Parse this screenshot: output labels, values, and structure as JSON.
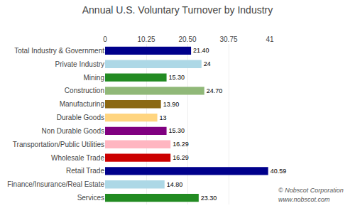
{
  "chart_data": {
    "type": "bar",
    "orientation": "horizontal",
    "title": "Annual U.S. Voluntary Turnover by Industry",
    "categories": [
      "Services",
      "Finance/Insurance/Real Estate",
      "Retail Trade",
      "Wholesale Trade",
      "Transportation/Public Utilities",
      "Non Durable Goods",
      "Durable Goods",
      "Manufacturing",
      "Construction",
      "Mining",
      "Private Industry",
      "Total Industry & Government"
    ],
    "values": [
      23.3,
      14.8,
      40.59,
      16.29,
      16.29,
      15.3,
      13.0,
      13.9,
      24.7,
      15.3,
      24.0,
      21.4
    ],
    "value_labels": [
      "23.30",
      "14.80",
      "40.59",
      "16.29",
      "16.29",
      "15.30",
      "13",
      "13.90",
      "24.70",
      "15.30",
      "24",
      "21.40"
    ],
    "data_labels": true,
    "colors": [
      "#228B22",
      "#ADD8E6",
      "#00008B",
      "#CC0000",
      "#FFB6C1",
      "#800080",
      "#FFD580",
      "#8B6914",
      "#90B878",
      "#228B22",
      "#ADD8E6",
      "#00008B"
    ],
    "xlim": [
      0,
      41
    ],
    "xticks": [
      0,
      10.25,
      {
        "value": 20.5,
        "label": "20.50"
      },
      30.75,
      41
    ],
    "grid": true,
    "annotations": [
      "© Nobscot Corporation",
      "www.nobscot.com"
    ]
  }
}
